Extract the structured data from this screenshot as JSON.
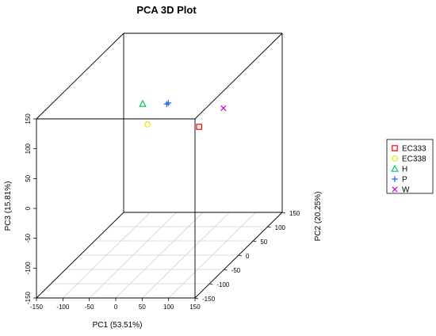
{
  "chart_data": {
    "type": "scatter",
    "dimensions": 3,
    "title": "PCA 3D Plot",
    "xlabel": "PC1 (53.51%)",
    "ylabel": "PC2 (20.25%)",
    "zlabel": "PC3 (15.81%)",
    "xlim": [
      -150,
      150
    ],
    "ylim": [
      -150,
      150
    ],
    "zlim": [
      -150,
      150
    ],
    "x_ticks": [
      -150,
      -100,
      -50,
      0,
      50,
      100,
      150
    ],
    "y_ticks": [
      -150,
      -100,
      -50,
      0,
      50,
      100,
      150
    ],
    "z_ticks": [
      -150,
      -100,
      -50,
      0,
      50,
      100,
      150
    ],
    "grid": "floor",
    "legend_position": "right",
    "series": [
      {
        "name": "EC333",
        "marker": "square",
        "color": "#ff0000",
        "points": [
          [
            12,
            115,
            10
          ]
        ]
      },
      {
        "name": "EC338",
        "marker": "circle",
        "color": "#e6e600",
        "points": [
          [
            -50,
            50,
            45
          ]
        ]
      },
      {
        "name": "H",
        "marker": "triangle",
        "color": "#00cc66",
        "points": [
          [
            -70,
            70,
            70
          ]
        ]
      },
      {
        "name": "P",
        "marker": "plus",
        "color": "#1e64ff",
        "points": [
          [
            17,
            0,
            105
          ],
          [
            13,
            2,
            102
          ]
        ]
      },
      {
        "name": "W",
        "marker": "x",
        "color": "#cc00cc",
        "points": [
          [
            91,
            55,
            70
          ]
        ]
      }
    ]
  }
}
